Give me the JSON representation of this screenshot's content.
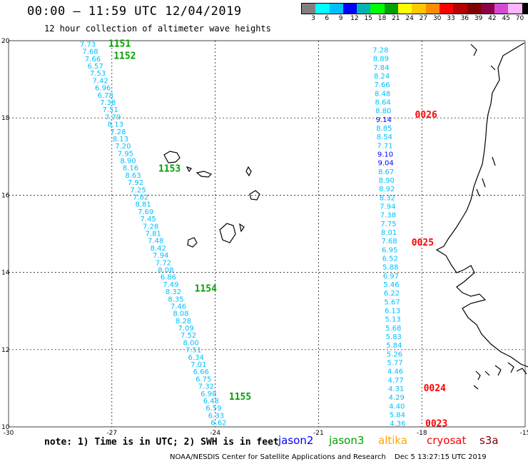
{
  "header": {
    "title": "00:00 – 11:59 UTC 12/04/2019",
    "subtitle": "12 hour collection of altimeter wave heights"
  },
  "colorbar": {
    "colors": [
      "#808080",
      "#00ffff",
      "#00bfff",
      "#0000ff",
      "#00b4b4",
      "#00ff00",
      "#00a000",
      "#ffff00",
      "#ffc800",
      "#ff8c00",
      "#ff0000",
      "#b40000",
      "#800000",
      "#8b004b",
      "#d24bd2",
      "#ffb4ff",
      "#000000"
    ],
    "labels": [
      "3",
      "6",
      "9",
      "12",
      "15",
      "18",
      "21",
      "24",
      "27",
      "30",
      "33",
      "36",
      "39",
      "42",
      "45",
      "70",
      "(ft)"
    ]
  },
  "axes": {
    "lon_labels": [
      "-30",
      "-27",
      "-24",
      "-21",
      "-18",
      "-15"
    ],
    "lat_labels": [
      "20",
      "18",
      "16",
      "14",
      "12",
      "10"
    ]
  },
  "tracks": [
    {
      "satellite": "jason3",
      "color": "#00bfff",
      "start": [
        -27.7,
        19.9
      ],
      "end": [
        -23.9,
        10.1
      ],
      "values": [
        "7.73",
        "7.68",
        "7.66",
        "6.57",
        "7.53",
        "7.42",
        "6.96",
        "6.78",
        "7.38",
        "7.51",
        "7.79",
        "8.13",
        "7.28",
        "8.13",
        "7.20",
        "7.95",
        "8.90",
        "8.16",
        "8.63",
        "7.92",
        "7.25",
        "7.82",
        "8.81",
        "7.69",
        "7.45",
        "7.28",
        "7.81",
        "7.48",
        "8.42",
        "7.94",
        "7.72",
        "8.08",
        "6.86",
        "7.49",
        "8.32",
        "8.35",
        "7.46",
        "8.08",
        "8.28",
        "7.09",
        "7.52",
        "8.00",
        "7.51",
        "6.34",
        "7.01",
        "6.66",
        "6.75",
        "7.32",
        "6.98",
        "6.48",
        "6.59",
        "6.33",
        "6.62"
      ],
      "orbits": [
        {
          "label": "1151",
          "lon": -27.1,
          "lat": 19.92
        },
        {
          "label": "1152",
          "lon": -26.95,
          "lat": 19.6
        },
        {
          "label": "1153",
          "lon": -25.65,
          "lat": 16.68
        },
        {
          "label": "1154",
          "lon": -24.6,
          "lat": 13.58
        },
        {
          "label": "1155",
          "lon": -23.6,
          "lat": 10.78
        }
      ]
    },
    {
      "satellite": "cryosat",
      "color": "#00bfff",
      "start": [
        -19.2,
        19.75
      ],
      "end": [
        -18.7,
        10.08
      ],
      "values": [
        "7.28",
        "8.89",
        "7.84",
        "8.24",
        "7.66",
        "8.48",
        "8.64",
        "8.80",
        "9.14",
        "8.85",
        "8.54",
        "7.71",
        "9.10",
        "9.04",
        "8.67",
        "8.90",
        "8.92",
        "8.32",
        "7.94",
        "7.38",
        "7.75",
        "8.01",
        "7.68",
        "6.95",
        "6.52",
        "5.88",
        "6.97",
        "5.46",
        "6.22",
        "5.67",
        "6.13",
        "5.13",
        "5.68",
        "5.83",
        "5.84",
        "5.26",
        "5.77",
        "4.46",
        "4.77",
        "4.31",
        "4.29",
        "4.40",
        "5.84",
        "4.36"
      ],
      "orbits": [
        {
          "label": "0026",
          "lon": -18.2,
          "lat": 18.08
        },
        {
          "label": "0025",
          "lon": -18.3,
          "lat": 14.77
        },
        {
          "label": "0024",
          "lon": -17.95,
          "lat": 11.0
        },
        {
          "label": "0023",
          "lon": -17.9,
          "lat": 10.08
        }
      ]
    }
  ],
  "note": "note: 1) Time is in UTC; 2) SWH is in feet",
  "legend": [
    {
      "name": "jason2",
      "color": "#0000ff"
    },
    {
      "name": "jason3",
      "color": "#00a000"
    },
    {
      "name": "altika",
      "color": "#ffa500"
    },
    {
      "name": "cryosat",
      "color": "#ff0000"
    },
    {
      "name": "s3a",
      "color": "#800000"
    }
  ],
  "footer": {
    "credit": "NOAA/NESDIS Center for Satellite Applications and Research",
    "timestamp": "Dec  5 13:27:15 UTC 2019"
  }
}
